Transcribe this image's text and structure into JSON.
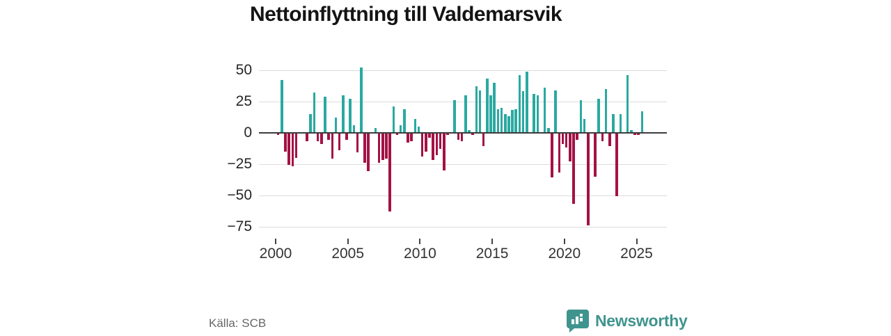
{
  "title": "Nettoinflyttning till Valdemarsvik",
  "source_label": "Källa: SCB",
  "brand": {
    "name": "Newsworthy",
    "color": "#3F948E",
    "icon": "speech-bubble-bar-chart-icon"
  },
  "chart_data": {
    "type": "bar",
    "title": "Nettoinflyttning till Valdemarsvik",
    "frequency": "quarterly",
    "grid": true,
    "legend": "none",
    "positive_color": "#2AA9A1",
    "negative_color": "#A31245",
    "ylim": [
      -80,
      55
    ],
    "ytick_labels": [
      "50",
      "25",
      "0",
      "−25",
      "−50",
      "−75"
    ],
    "ytick_values": [
      50,
      25,
      0,
      -25,
      -50,
      -75
    ],
    "xtick_labels": [
      "2000",
      "2005",
      "2010",
      "2015",
      "2020",
      "2025"
    ],
    "xtick_years": [
      2000,
      2005,
      2010,
      2015,
      2020,
      2025
    ],
    "years": [
      {
        "year": 2000,
        "values": [
          -2,
          42,
          -15,
          -26
        ]
      },
      {
        "year": 2001,
        "values": [
          -27,
          -20,
          -1,
          -1
        ]
      },
      {
        "year": 2002,
        "values": [
          -7,
          15,
          32,
          -7
        ]
      },
      {
        "year": 2003,
        "values": [
          -9,
          29,
          -6,
          -21
        ]
      },
      {
        "year": 2004,
        "values": [
          12,
          -14,
          30,
          -6
        ]
      },
      {
        "year": 2005,
        "values": [
          27,
          6,
          -16,
          52
        ]
      },
      {
        "year": 2006,
        "values": [
          -24,
          -31,
          0,
          4
        ]
      },
      {
        "year": 2007,
        "values": [
          -24,
          -22,
          -21,
          -63
        ]
      },
      {
        "year": 2008,
        "values": [
          21,
          -2,
          6,
          19
        ]
      },
      {
        "year": 2009,
        "values": [
          -8,
          -7,
          11,
          5
        ]
      },
      {
        "year": 2010,
        "values": [
          -19,
          -15,
          -4,
          -22
        ]
      },
      {
        "year": 2011,
        "values": [
          -18,
          -13,
          -30,
          -2
        ]
      },
      {
        "year": 2012,
        "values": [
          0,
          26,
          -6,
          -7
        ]
      },
      {
        "year": 2013,
        "values": [
          30,
          2,
          -2,
          37
        ]
      },
      {
        "year": 2014,
        "values": [
          34,
          -11,
          43,
          30
        ]
      },
      {
        "year": 2015,
        "values": [
          40,
          19,
          20,
          15
        ]
      },
      {
        "year": 2016,
        "values": [
          13,
          18,
          19,
          46
        ]
      },
      {
        "year": 2017,
        "values": [
          33,
          49,
          0,
          31
        ]
      },
      {
        "year": 2018,
        "values": [
          30,
          0,
          36,
          4
        ]
      },
      {
        "year": 2019,
        "values": [
          -36,
          34,
          -32,
          -9
        ]
      },
      {
        "year": 2020,
        "values": [
          -12,
          -23,
          -57,
          -6
        ]
      },
      {
        "year": 2021,
        "values": [
          26,
          11,
          -74,
          0
        ]
      },
      {
        "year": 2022,
        "values": [
          -35,
          27,
          -7,
          35
        ]
      },
      {
        "year": 2023,
        "values": [
          -11,
          15,
          -51,
          15
        ]
      },
      {
        "year": 2024,
        "values": [
          -1,
          46,
          2,
          -2
        ]
      },
      {
        "year": 2025,
        "values": [
          -2,
          17
        ]
      }
    ]
  }
}
